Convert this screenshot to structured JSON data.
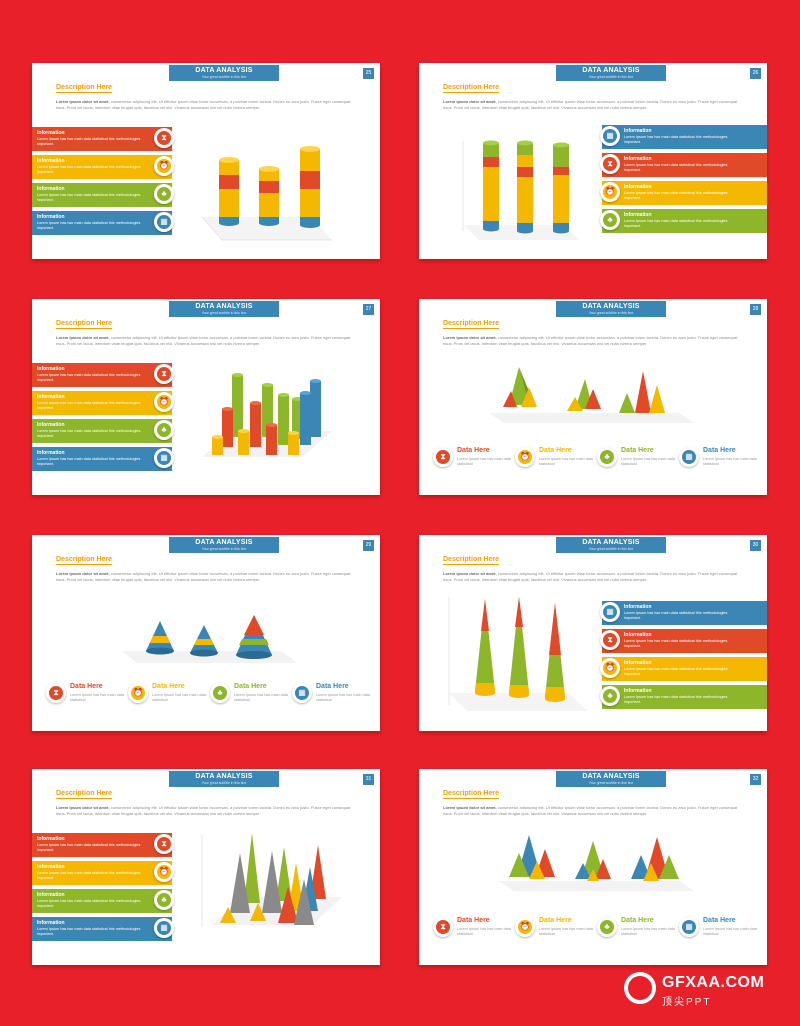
{
  "common": {
    "header_title": "DATA ANALYSIS",
    "header_subtitle": "Your great subtitle in this line",
    "desc_title": "Description Here",
    "para_lead": "Lorem ipsum dolor sit amet,",
    "para_body": "consectetur adipiscing elit. Ut efficitur ipsum vitae tortor accumsan, a pulvinar lorem lacinia. Donec eu arcu justo. Fusce eget consequat risus. Proin vel lacus, interdum vitae feugiat quis, faucibus vel nisl. Vivamus accumsan nisl vel nulla viverra semper.",
    "info_label": "Information",
    "info_text": "Lorem Ipsum has two main data statistical this methodologies important.",
    "dh_label": "Data Here",
    "dh_text": "Lorem Ipsum has two main data statistical"
  },
  "slides": [
    {
      "num": "25"
    },
    {
      "num": "26"
    },
    {
      "num": "27"
    },
    {
      "num": "28"
    },
    {
      "num": "29"
    },
    {
      "num": "30"
    },
    {
      "num": "31"
    },
    {
      "num": "32"
    }
  ],
  "colors": {
    "red": "#e04a28",
    "yellow": "#f4b800",
    "green": "#8db62b",
    "blue": "#3b86b5",
    "gray": "#8a8a8a"
  },
  "icons": [
    "hourglass-icon",
    "alarm-clock-icon",
    "hierarchy-icon",
    "calendar-icon"
  ],
  "watermark": {
    "brand": "GFXAA.COM",
    "sub": "顶尖PPT"
  }
}
